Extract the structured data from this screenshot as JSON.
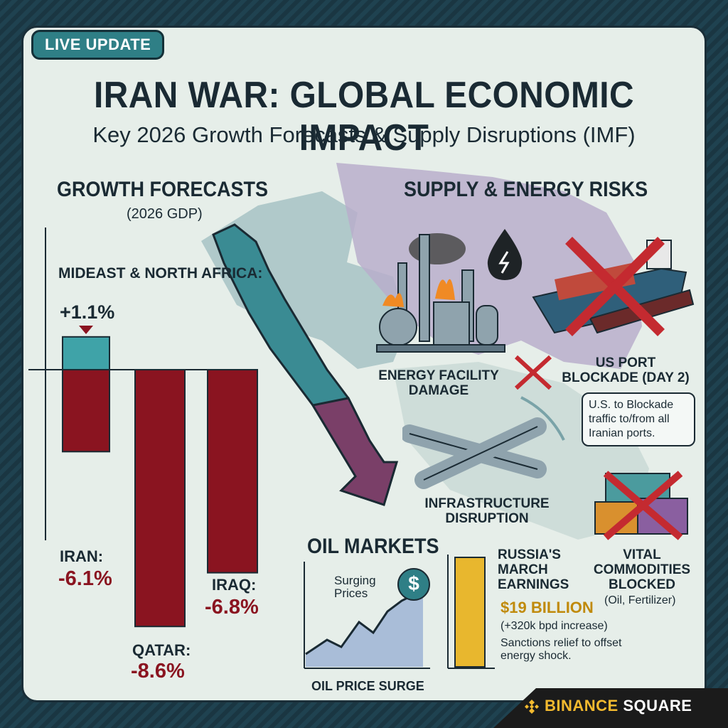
{
  "badge": "LIVE UPDATE",
  "title": "IRAN WAR: GLOBAL ECONOMIC IMPACT",
  "subtitle": "Key 2026 Growth Forecasts & Supply Disruptions (IMF)",
  "growth": {
    "heading": "GROWTH FORECASTS",
    "subheading": "(2026 GDP)",
    "mena_label": "MIDEAST & NORTH AFRICA:",
    "mena_value": "+1.1%",
    "iran_label": "IRAN:",
    "iran_value": "-6.1%",
    "qatar_label": "QATAR:",
    "qatar_value": "-8.6%",
    "iraq_label": "IRAQ:",
    "iraq_value": "-6.8%"
  },
  "supply": {
    "heading": "SUPPLY & ENERGY RISKS",
    "energy_facility": "ENERGY FACILITY DAMAGE",
    "blockade_title": "US PORT BLOCKADE (DAY 2)",
    "blockade_note": "U.S. to Blockade traffic to/from all Iranian ports.",
    "infrastructure": "INFRASTRUCTURE DISRUPTION",
    "commodities_title": "VITAL COMMODITIES BLOCKED",
    "commodities_note": "(Oil, Fertilizer)"
  },
  "oil": {
    "heading": "OIL MARKETS",
    "surging": "Surging Prices",
    "surge_label": "OIL PRICE SURGE",
    "currency_symbol": "$",
    "russia_title": "RUSSIA'S MARCH EARNINGS",
    "russia_value": "$19 BILLION",
    "russia_increase": "(+320k bpd increase)",
    "russia_note": "Sanctions relief to offset energy shock."
  },
  "branding": {
    "brand_a": "BINANCE",
    "brand_b": " SQUARE"
  },
  "chart_data": {
    "type": "bar",
    "title": "GROWTH FORECASTS",
    "subtitle": "(2026 GDP)",
    "categories": [
      "MIDEAST & NORTH AFRICA",
      "IRAN",
      "QATAR",
      "IRAQ"
    ],
    "values": [
      1.1,
      -6.1,
      -8.6,
      -6.8
    ],
    "unit": "%"
  },
  "colors": {
    "positive_bar": "#3fa3a8",
    "negative_bar": "#8a1420",
    "accent_red": "#c42a30",
    "brand_yellow": "#f3ba2f"
  }
}
